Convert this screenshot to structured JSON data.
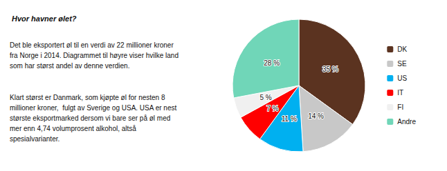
{
  "chart_data": {
    "type": "pie",
    "title": "Hvor havner ølet?",
    "annotations": [
      "Det ble eksportert øl til en verdi av 22 millioner kroner\nfra Norge i 2014. Diagrammet til høyre viser hvilke land\nsom har størst andel av denne verdien.",
      "Klart størst er Danmark, som kjøpte øl for nesten 8\nmillioner kroner,  fulgt av Sverige og USA. USA er nest\nstørste eksportmarked dersom vi bare ser på øl med\nmer enn 4,74 volumprosent alkohol, altså\nspesialvarianter."
    ],
    "categories": [
      "DK",
      "SE",
      "US",
      "IT",
      "FI",
      "Andre"
    ],
    "values": [
      35,
      14,
      11,
      7,
      5,
      28
    ],
    "value_labels": [
      "35 %",
      "14 %",
      "11 %",
      "7 %",
      "5 %",
      "28 %"
    ],
    "colors": [
      "#5b3320",
      "#c8c8c8",
      "#00b0f0",
      "#ff0000",
      "#f0f0f0",
      "#70d6b8"
    ],
    "legend": "right",
    "data_labels": true
  }
}
